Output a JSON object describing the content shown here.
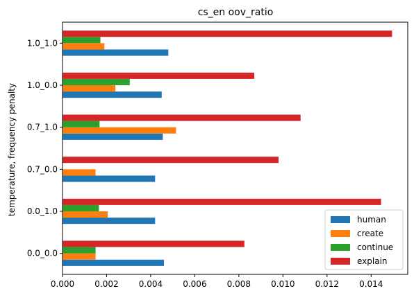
{
  "chart_data": {
    "type": "bar",
    "orientation": "horizontal",
    "title": "cs_en oov_ratio",
    "xlabel": "",
    "ylabel": "temperature, frequency penalty",
    "categories": [
      "0.0_0.0",
      "0.0_1.0",
      "0.7_0.0",
      "0.7_1.0",
      "1.0_0.0",
      "1.0_1.0"
    ],
    "x_ticks": [
      "0.000",
      "0.002",
      "0.004",
      "0.006",
      "0.008",
      "0.010",
      "0.012",
      "0.014"
    ],
    "xlim": [
      0,
      0.0158
    ],
    "grid": false,
    "legend_position": "lower-right",
    "series": [
      {
        "name": "human",
        "color": "#1f77b4",
        "values": [
          0.0046,
          0.0042,
          0.0042,
          0.00455,
          0.0045,
          0.0048
        ]
      },
      {
        "name": "create",
        "color": "#ff7f0e",
        "values": [
          0.0015,
          0.00205,
          0.0015,
          0.00515,
          0.0024,
          0.0019
        ]
      },
      {
        "name": "continue",
        "color": "#2ca02c",
        "values": [
          0.0015,
          0.00165,
          0.0,
          0.00168,
          0.00305,
          0.00172
        ]
      },
      {
        "name": "explain",
        "color": "#d62728",
        "values": [
          0.00825,
          0.01445,
          0.0098,
          0.0108,
          0.0087,
          0.01495
        ]
      }
    ]
  }
}
